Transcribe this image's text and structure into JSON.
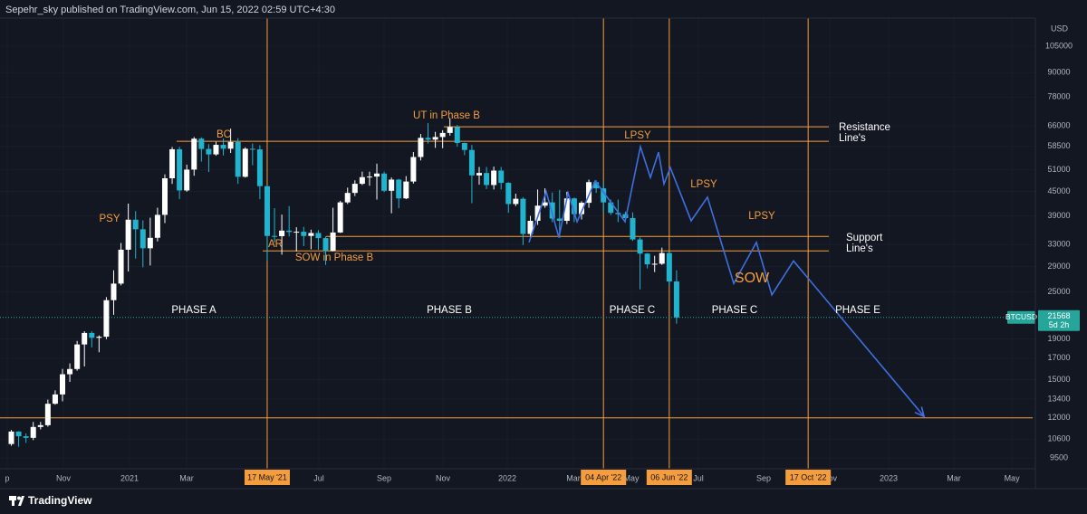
{
  "header": {
    "text": "Sepehr_sky published on TradingView.com, Jun 15, 2022 02:59 UTC+4:30"
  },
  "footer": {
    "brand": "TradingView"
  },
  "chart_data": {
    "type": "candlestick",
    "currency": "USD",
    "symbol": "BTCUSD",
    "last_price": 21568,
    "countdown": "5d 2h",
    "log_scale": true,
    "grid": true,
    "up_color": "#ffffff",
    "down_color": "#22b4cf",
    "level_color": "#f59d3d",
    "projection_color": "#3f6fe0",
    "price_color": "#26a69a",
    "ylim": [
      9060,
      123700
    ],
    "yticks": [
      105000,
      90000,
      78000,
      66000,
      58500,
      51000,
      45000,
      39000,
      33000,
      29000,
      25000,
      19000,
      17000,
      15000,
      13400,
      12000,
      10600,
      9500
    ],
    "xlim": [
      -1.55,
      139.71
    ],
    "xticks": [
      {
        "value": -0.56,
        "label": "p"
      },
      {
        "value": 7.13,
        "label": "Nov"
      },
      {
        "value": 16.17,
        "label": "2021"
      },
      {
        "value": 23.98,
        "label": "Mar"
      },
      {
        "value": 42.07,
        "label": "Jul"
      },
      {
        "value": 50.99,
        "label": "Sep"
      },
      {
        "value": 59.05,
        "label": "Nov"
      },
      {
        "value": 67.84,
        "label": "2022"
      },
      {
        "value": 76.89,
        "label": "Mar"
      },
      {
        "value": 84.82,
        "label": "May"
      },
      {
        "value": 93.99,
        "label": "Jul"
      },
      {
        "value": 102.91,
        "label": "Sep"
      },
      {
        "value": 111.96,
        "label": "Nov"
      },
      {
        "value": 120.01,
        "label": "2023"
      },
      {
        "value": 128.93,
        "label": "Mar"
      },
      {
        "value": 136.87,
        "label": "May"
      }
    ],
    "markers": [
      {
        "x": 35,
        "label": "17 May '21"
      },
      {
        "x": 81,
        "label": "04 Apr '22"
      },
      {
        "x": 90,
        "label": "06 Jun '22"
      },
      {
        "x": 109,
        "label": "17 Oct '22"
      }
    ],
    "levels": [
      {
        "y": 65600,
        "x": [
          59.17,
          111.83
        ]
      },
      {
        "y": 60300,
        "x": [
          22.61,
          111.83
        ]
      },
      {
        "y": 34600,
        "x": [
          43.06,
          111.83
        ]
      },
      {
        "y": 31800,
        "x": [
          34.39,
          111.83
        ]
      },
      {
        "y": 12000,
        "x": [
          -1.55,
          139.71
        ]
      }
    ],
    "x": [
      0,
      1,
      2,
      3,
      4,
      5,
      6,
      7,
      8,
      9,
      10,
      11,
      12,
      13,
      14,
      15,
      16,
      17,
      18,
      19,
      20,
      21,
      22,
      23,
      24,
      25,
      26,
      27,
      28,
      29,
      30,
      31,
      32,
      33,
      34,
      35,
      36,
      37,
      38,
      39,
      40,
      41,
      42,
      43,
      44,
      45,
      46,
      47,
      48,
      49,
      50,
      51,
      52,
      53,
      54,
      55,
      56,
      57,
      58,
      59,
      60,
      61,
      62,
      63,
      64,
      65,
      66,
      67,
      68,
      69,
      70,
      71,
      72,
      73,
      74,
      75,
      76,
      77,
      78,
      79,
      80,
      81,
      82,
      83,
      84,
      85,
      86,
      87,
      88,
      89,
      90,
      91
    ],
    "open": [
      10300,
      11080,
      10780,
      10680,
      11380,
      11500,
      13030,
      13760,
      15480,
      15960,
      18420,
      19700,
      19150,
      19270,
      23850,
      26270,
      32020,
      38150,
      36070,
      32290,
      34320,
      39240,
      48580,
      57540,
      45250,
      51100,
      61200,
      57650,
      55840,
      59040,
      57730,
      60040,
      49000,
      57700,
      57480,
      46400,
      34700,
      34650,
      35790,
      35500,
      35560,
      34700,
      35290,
      34260,
      31800,
      35400,
      42200,
      44600,
      47040,
      48900,
      49060,
      49940,
      45160,
      48200,
      43200,
      47660,
      55000,
      61500,
      60860,
      61800,
      63300,
      65500,
      59700,
      57300,
      49400,
      50100,
      46700,
      50800,
      47300,
      41800,
      43100,
      35100,
      37900,
      41400,
      42200,
      38400,
      37900,
      43200,
      39400,
      42100,
      47500,
      45800,
      42200,
      39700,
      39400,
      38500,
      34000,
      31300,
      29400,
      29500,
      31400,
      26600
    ],
    "high": [
      11180,
      11100,
      10960,
      11720,
      11720,
      13350,
      14090,
      15970,
      16490,
      18800,
      19900,
      19900,
      19420,
      24280,
      28400,
      33300,
      41900,
      40100,
      38000,
      38600,
      40900,
      49700,
      58300,
      58350,
      52600,
      61800,
      61700,
      59300,
      60100,
      61300,
      64900,
      61400,
      58200,
      59500,
      58900,
      46600,
      40800,
      39300,
      41300,
      36500,
      36600,
      36000,
      35900,
      34600,
      40900,
      42600,
      46000,
      48000,
      50500,
      50500,
      52900,
      50500,
      48800,
      48400,
      49200,
      56600,
      62900,
      67000,
      63700,
      64300,
      69000,
      66300,
      59800,
      59000,
      51900,
      51900,
      52000,
      51900,
      47500,
      44400,
      43500,
      39000,
      45500,
      45800,
      44700,
      45400,
      44900,
      43400,
      42500,
      48200,
      48000,
      47400,
      42900,
      42900,
      40000,
      39800,
      34400,
      31400,
      30900,
      32400,
      31700,
      28400
    ],
    "low": [
      10200,
      10140,
      10370,
      10540,
      11220,
      11400,
      12960,
      13220,
      14800,
      15800,
      16200,
      18100,
      17600,
      19000,
      21900,
      26000,
      28200,
      30400,
      28900,
      29200,
      33600,
      37400,
      47000,
      43000,
      44900,
      49300,
      53500,
      50400,
      55400,
      55500,
      56300,
      47000,
      48800,
      52400,
      43000,
      30000,
      33400,
      31100,
      34600,
      31700,
      32700,
      32100,
      32000,
      29300,
      31700,
      35300,
      41800,
      43800,
      46700,
      46500,
      42900,
      44800,
      39600,
      40800,
      43000,
      47100,
      53900,
      59500,
      58000,
      57900,
      62300,
      58400,
      55600,
      42000,
      46800,
      45600,
      45500,
      45500,
      39700,
      41300,
      32900,
      34100,
      37000,
      40900,
      37600,
      34300,
      37200,
      37600,
      38200,
      40900,
      44600,
      39800,
      39200,
      37600,
      37600,
      33700,
      25400,
      28700,
      28100,
      29300,
      25900,
      20800
    ],
    "close": [
      11080,
      10780,
      10680,
      11380,
      11500,
      13030,
      13760,
      15480,
      15960,
      18420,
      19700,
      19150,
      19270,
      23850,
      26270,
      32020,
      38150,
      36070,
      32290,
      34320,
      39240,
      48580,
      57540,
      45250,
      51100,
      61200,
      57650,
      55840,
      59040,
      57730,
      60040,
      49000,
      57700,
      57480,
      46400,
      34700,
      34650,
      35790,
      35500,
      35560,
      34700,
      35290,
      34260,
      31800,
      35400,
      42200,
      44600,
      47040,
      48900,
      49060,
      49940,
      45160,
      48200,
      43200,
      47660,
      55000,
      61500,
      60860,
      61800,
      63300,
      65500,
      59700,
      57300,
      49400,
      50100,
      46700,
      50800,
      47300,
      41800,
      43100,
      35100,
      37900,
      41400,
      42200,
      38400,
      37900,
      43200,
      39400,
      42100,
      47500,
      45800,
      42200,
      39700,
      39400,
      38500,
      34000,
      31300,
      29400,
      29500,
      31400,
      26600,
      21568
    ],
    "projection": {
      "x": [
        70.82,
        73.17,
        74.91,
        76.15,
        77.39,
        79.86,
        81.23,
        83.95,
        86.06,
        87.42,
        88.54,
        89.28,
        90.15,
        93.0,
        95.23,
        98.82,
        101.92,
        104.03,
        107.0,
        124.85
      ],
      "y": [
        33400,
        44900,
        34400,
        44600,
        37700,
        47800,
        44200,
        37700,
        58400,
        48800,
        56600,
        47000,
        51700,
        37900,
        43500,
        26300,
        33400,
        24600,
        30000,
        12100
      ]
    },
    "annotations": [
      {
        "text": "PSY",
        "color": "#f59d3d"
      },
      {
        "text": "BC",
        "color": "#f59d3d"
      },
      {
        "text": "AR",
        "color": "#f59d3d"
      },
      {
        "text": "SOW in Phase B",
        "color": "#f59d3d"
      },
      {
        "text": "UT in Phase B",
        "color": "#f59d3d"
      },
      {
        "text": "LPSY",
        "color": "#f59d3d"
      },
      {
        "text": "LPSY",
        "color": "#f59d3d"
      },
      {
        "text": "LPSY",
        "color": "#f59d3d"
      },
      {
        "text": "SOW",
        "color": "#f59d3d"
      },
      {
        "text": "Resistance",
        "color": "#ffffff"
      },
      {
        "text": "Line's",
        "color": "#ffffff"
      },
      {
        "text": "Support",
        "color": "#ffffff"
      },
      {
        "text": "Line's",
        "color": "#ffffff"
      },
      {
        "text": "PHASE A",
        "color": "#ffffff"
      },
      {
        "text": "PHASE B",
        "color": "#ffffff"
      },
      {
        "text": "PHASE C",
        "color": "#ffffff"
      },
      {
        "text": "PHASE C",
        "color": "#ffffff"
      },
      {
        "text": "PHASE E",
        "color": "#ffffff"
      }
    ]
  }
}
